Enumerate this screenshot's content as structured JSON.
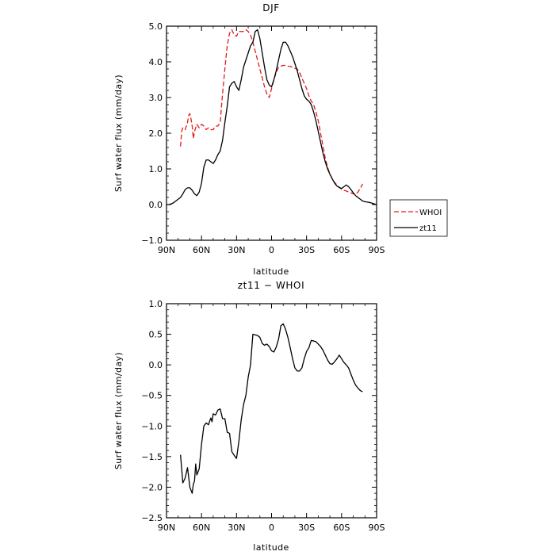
{
  "chart_data": [
    {
      "type": "line",
      "title": "DJF",
      "xlabel": "latitude",
      "ylabel": "Surf water flux (mm/day)",
      "x_ticks": [
        {
          "value": -90,
          "label": "90N"
        },
        {
          "value": -60,
          "label": "60N"
        },
        {
          "value": -30,
          "label": "30N"
        },
        {
          "value": 0,
          "label": "0"
        },
        {
          "value": 30,
          "label": "30S"
        },
        {
          "value": 60,
          "label": "60S"
        },
        {
          "value": 90,
          "label": "90S"
        }
      ],
      "y_ticks": [
        {
          "value": -1,
          "label": "−1.0"
        },
        {
          "value": 0,
          "label": "0.0"
        },
        {
          "value": 1,
          "label": "1.0"
        },
        {
          "value": 2,
          "label": "2.0"
        },
        {
          "value": 3,
          "label": "3.0"
        },
        {
          "value": 4,
          "label": "4.0"
        },
        {
          "value": 5,
          "label": "5.0"
        }
      ],
      "xlim": [
        -90,
        90
      ],
      "ylim": [
        -1,
        5
      ],
      "grid": false,
      "legend": "outside-right",
      "series": [
        {
          "name": "WHOI",
          "color": "#e31a1c",
          "dash": "dashed",
          "x": [
            -78,
            -77,
            -76,
            -74,
            -72,
            -71,
            -70,
            -69,
            -68,
            -67,
            -66,
            -64,
            -62,
            -60,
            -58,
            -56,
            -54,
            -52,
            -50,
            -48,
            -46,
            -44,
            -42,
            -40,
            -38,
            -36,
            -34,
            -32,
            -30,
            -28,
            -26,
            -24,
            -22,
            -20,
            -18,
            -16,
            -14,
            -12,
            -10,
            -8,
            -6,
            -4,
            -2,
            0,
            2,
            4,
            6,
            8,
            10,
            12,
            14,
            16,
            18,
            20,
            22,
            24,
            26,
            28,
            30,
            32,
            34,
            36,
            38,
            40,
            42,
            44,
            46,
            48,
            50,
            52,
            54,
            56,
            58,
            60,
            62,
            64,
            66,
            68,
            70,
            72,
            74,
            76,
            78
          ],
          "y": [
            1.63,
            2.05,
            2.15,
            2.1,
            2.3,
            2.5,
            2.55,
            2.4,
            2.2,
            1.85,
            2.05,
            2.25,
            2.15,
            2.25,
            2.2,
            2.1,
            2.15,
            2.1,
            2.1,
            2.2,
            2.2,
            2.3,
            3.1,
            3.8,
            4.45,
            4.8,
            4.9,
            4.75,
            4.72,
            4.85,
            4.85,
            4.85,
            4.9,
            4.85,
            4.75,
            4.55,
            4.3,
            4.05,
            3.8,
            3.55,
            3.3,
            3.1,
            3.0,
            3.25,
            3.5,
            3.7,
            3.85,
            3.88,
            3.9,
            3.9,
            3.88,
            3.87,
            3.85,
            3.82,
            3.8,
            3.7,
            3.55,
            3.4,
            3.25,
            3.05,
            2.9,
            2.8,
            2.6,
            2.35,
            2.0,
            1.65,
            1.3,
            1.05,
            0.85,
            0.72,
            0.62,
            0.55,
            0.48,
            0.43,
            0.4,
            0.38,
            0.35,
            0.33,
            0.3,
            0.28,
            0.35,
            0.45,
            0.58
          ]
        },
        {
          "name": "zt11",
          "color": "#000000",
          "dash": "solid",
          "x": [
            -90,
            -88,
            -86,
            -84,
            -82,
            -80,
            -78,
            -76,
            -74,
            -72,
            -70,
            -68,
            -66,
            -64,
            -62,
            -60,
            -58,
            -56,
            -54,
            -52,
            -50,
            -48,
            -46,
            -44,
            -42,
            -40,
            -38,
            -36,
            -34,
            -32,
            -30,
            -28,
            -26,
            -24,
            -22,
            -20,
            -18,
            -16,
            -14,
            -12,
            -10,
            -8,
            -6,
            -4,
            -2,
            0,
            2,
            4,
            6,
            8,
            10,
            12,
            14,
            16,
            18,
            20,
            22,
            24,
            26,
            28,
            30,
            32,
            34,
            36,
            38,
            40,
            42,
            44,
            46,
            48,
            50,
            52,
            54,
            56,
            58,
            60,
            62,
            64,
            66,
            68,
            70,
            72,
            74,
            76,
            78,
            80,
            82,
            84,
            86,
            88,
            90
          ],
          "y": [
            0.0,
            0.0,
            0.02,
            0.05,
            0.1,
            0.15,
            0.2,
            0.3,
            0.42,
            0.47,
            0.47,
            0.4,
            0.3,
            0.25,
            0.35,
            0.6,
            1.05,
            1.25,
            1.25,
            1.2,
            1.15,
            1.25,
            1.4,
            1.5,
            1.8,
            2.3,
            2.75,
            3.3,
            3.4,
            3.45,
            3.3,
            3.2,
            3.5,
            3.85,
            4.05,
            4.25,
            4.45,
            4.55,
            4.85,
            4.9,
            4.65,
            4.25,
            3.85,
            3.5,
            3.35,
            3.3,
            3.5,
            3.75,
            4.05,
            4.35,
            4.55,
            4.55,
            4.45,
            4.3,
            4.15,
            3.95,
            3.75,
            3.5,
            3.25,
            3.05,
            2.95,
            2.9,
            2.8,
            2.6,
            2.35,
            2.05,
            1.75,
            1.45,
            1.2,
            1.0,
            0.85,
            0.72,
            0.6,
            0.52,
            0.48,
            0.45,
            0.5,
            0.55,
            0.5,
            0.42,
            0.33,
            0.25,
            0.2,
            0.15,
            0.1,
            0.08,
            0.07,
            0.06,
            0.04,
            0.02,
            0.0
          ]
        }
      ]
    },
    {
      "type": "line",
      "title": "zt11 − WHOI",
      "xlabel": "latitude",
      "ylabel": "Surf water flux (mm/day)",
      "x_ticks": [
        {
          "value": -90,
          "label": "90N"
        },
        {
          "value": -60,
          "label": "60N"
        },
        {
          "value": -30,
          "label": "30N"
        },
        {
          "value": 0,
          "label": "0"
        },
        {
          "value": 30,
          "label": "30S"
        },
        {
          "value": 60,
          "label": "60S"
        },
        {
          "value": 90,
          "label": "90S"
        }
      ],
      "y_ticks": [
        {
          "value": -2.5,
          "label": "−2.5"
        },
        {
          "value": -2,
          "label": "−2.0"
        },
        {
          "value": -1.5,
          "label": "−1.5"
        },
        {
          "value": -1,
          "label": "−1.0"
        },
        {
          "value": -0.5,
          "label": "−0.5"
        },
        {
          "value": 0,
          "label": "0.0"
        },
        {
          "value": 0.5,
          "label": "0.5"
        },
        {
          "value": 1,
          "label": "1.0"
        }
      ],
      "xlim": [
        -90,
        90
      ],
      "ylim": [
        -2.5,
        1
      ],
      "grid": false,
      "series": [
        {
          "color": "#000000",
          "dash": "solid",
          "x": [
            -78,
            -76,
            -74,
            -72,
            -70,
            -68,
            -67,
            -66,
            -65,
            -64,
            -62,
            -60,
            -58,
            -56,
            -54,
            -53,
            -52,
            -51,
            -50,
            -48,
            -46,
            -44,
            -42,
            -40,
            -38,
            -36,
            -34,
            -32,
            -30,
            -28,
            -26,
            -24,
            -22,
            -20,
            -18,
            -16,
            -14,
            -12,
            -10,
            -8,
            -6,
            -4,
            -2,
            0,
            2,
            4,
            6,
            8,
            10,
            12,
            14,
            16,
            18,
            20,
            22,
            24,
            26,
            28,
            30,
            32,
            34,
            36,
            38,
            40,
            42,
            44,
            46,
            48,
            50,
            52,
            54,
            56,
            58,
            60,
            62,
            64,
            66,
            68,
            70,
            72,
            74,
            76,
            78
          ],
          "y": [
            -1.47,
            -1.93,
            -1.85,
            -1.68,
            -2.0,
            -2.1,
            -1.95,
            -1.9,
            -1.62,
            -1.8,
            -1.7,
            -1.3,
            -1.0,
            -0.95,
            -0.98,
            -0.92,
            -0.87,
            -0.93,
            -0.8,
            -0.82,
            -0.74,
            -0.72,
            -0.88,
            -0.88,
            -1.1,
            -1.12,
            -1.42,
            -1.48,
            -1.53,
            -1.25,
            -0.9,
            -0.65,
            -0.5,
            -0.2,
            0.0,
            0.5,
            0.49,
            0.48,
            0.45,
            0.35,
            0.32,
            0.34,
            0.3,
            0.23,
            0.21,
            0.29,
            0.42,
            0.64,
            0.67,
            0.58,
            0.45,
            0.28,
            0.1,
            -0.05,
            -0.1,
            -0.1,
            -0.05,
            0.1,
            0.22,
            0.28,
            0.4,
            0.39,
            0.38,
            0.34,
            0.3,
            0.24,
            0.16,
            0.08,
            0.02,
            0.01,
            0.05,
            0.1,
            0.16,
            0.1,
            0.04,
            0.0,
            -0.05,
            -0.15,
            -0.25,
            -0.33,
            -0.38,
            -0.42,
            -0.44
          ]
        }
      ]
    }
  ]
}
